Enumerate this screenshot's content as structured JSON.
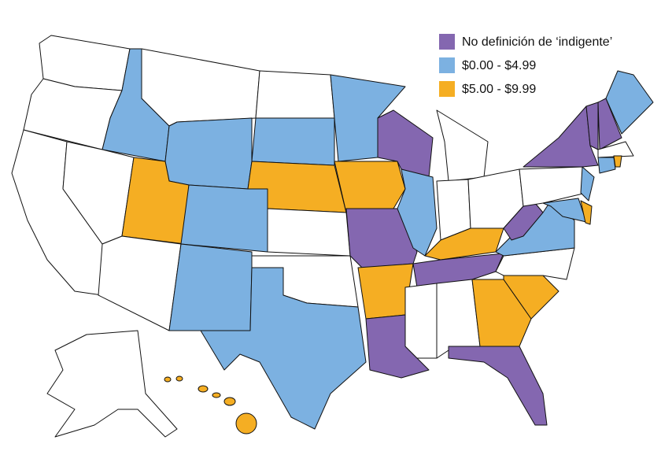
{
  "legend": {
    "items": [
      {
        "label": "No definición de ‘indigente’",
        "color": "#8467b0"
      },
      {
        "label": "$0.00 - $4.99",
        "color": "#7cb1e1"
      },
      {
        "label": "$5.00 - $9.99",
        "color": "#f5ae23"
      }
    ]
  }
}
